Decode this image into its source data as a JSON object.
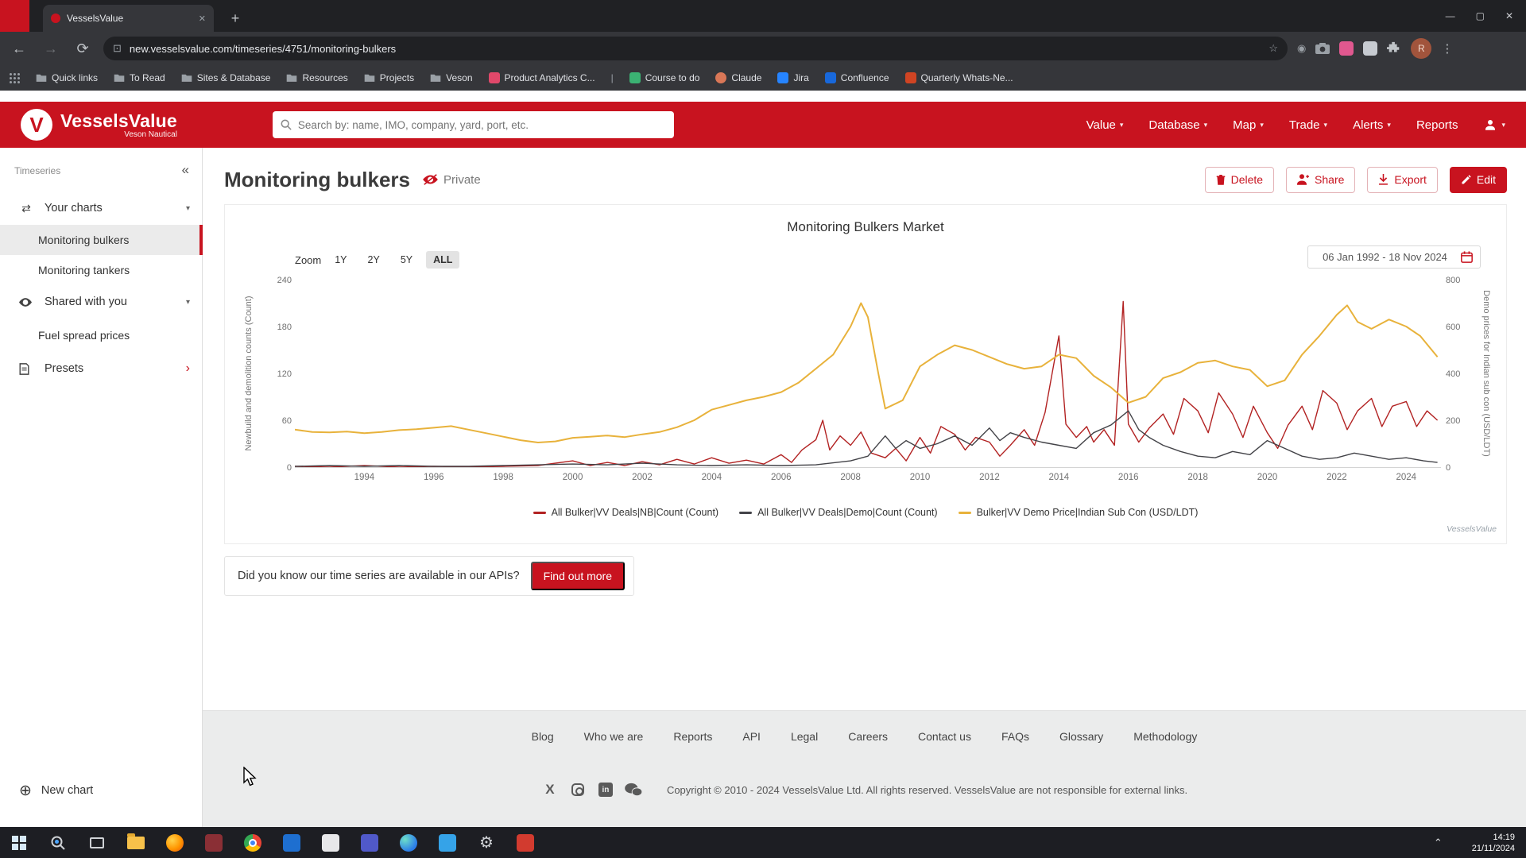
{
  "browser": {
    "tab": {
      "title": "VesselsValue"
    },
    "url": "new.vesselsvalue.com/timeseries/4751/monitoring-bulkers",
    "bookmarks": [
      {
        "label": "Quick links",
        "icon": "folder"
      },
      {
        "label": "To Read",
        "icon": "folder"
      },
      {
        "label": "Sites & Database",
        "icon": "folder"
      },
      {
        "label": "Resources",
        "icon": "folder"
      },
      {
        "label": "Projects",
        "icon": "folder"
      },
      {
        "label": "Veson",
        "icon": "folder"
      },
      {
        "label": "Product Analytics C...",
        "icon": "site"
      },
      {
        "label": "Course to do",
        "icon": "site"
      },
      {
        "label": "Claude",
        "icon": "site"
      },
      {
        "label": "Jira",
        "icon": "site"
      },
      {
        "label": "Confluence",
        "icon": "site"
      },
      {
        "label": "Quarterly Whats-Ne...",
        "icon": "site"
      }
    ]
  },
  "site_header": {
    "brand": "VesselsValue",
    "brand_sub": "Veson Nautical",
    "search_placeholder": "Search by: name, IMO, company, yard, port, etc.",
    "nav": [
      {
        "label": "Value",
        "dropdown": true
      },
      {
        "label": "Database",
        "dropdown": true
      },
      {
        "label": "Map",
        "dropdown": true
      },
      {
        "label": "Trade",
        "dropdown": true
      },
      {
        "label": "Alerts",
        "dropdown": true
      },
      {
        "label": "Reports",
        "dropdown": false
      }
    ]
  },
  "sidebar": {
    "section": "Timeseries",
    "your_charts": "Your charts",
    "your_charts_items": [
      "Monitoring bulkers",
      "Monitoring tankers"
    ],
    "selected_item": "Monitoring bulkers",
    "shared": "Shared with you",
    "shared_items": [
      "Fuel spread prices"
    ],
    "presets": "Presets",
    "new_chart": "New chart"
  },
  "page": {
    "title": "Monitoring bulkers",
    "privacy": "Private",
    "actions": {
      "delete": "Delete",
      "share": "Share",
      "export": "Export",
      "edit": "Edit"
    }
  },
  "chart": {
    "zoom_label": "Zoom",
    "zoom_buttons": [
      "1Y",
      "2Y",
      "5Y",
      "ALL"
    ],
    "zoom_active": "ALL",
    "date_range": "06 Jan 1992 - 18 Nov 2024",
    "watermark": "VesselsValue"
  },
  "api_banner": {
    "text": "Did you know our time series are available in our APIs?",
    "button": "Find out more"
  },
  "footer": {
    "links": [
      "Blog",
      "Who we are",
      "Reports",
      "API",
      "Legal",
      "Careers",
      "Contact us",
      "FAQs",
      "Glossary",
      "Methodology"
    ],
    "social": [
      "x",
      "instagram",
      "linkedin",
      "wechat"
    ],
    "copyright": "Copyright © 2010 - 2024 VesselsValue Ltd. All rights reserved. VesselsValue are not responsible for external links."
  },
  "taskbar": {
    "time": "14:19",
    "date": "21/11/2024"
  },
  "colors": {
    "brand_red": "#c8131f",
    "series_nb": "#b22222",
    "series_demo": "#434348",
    "series_price": "#e8b23b"
  },
  "chart_data": {
    "type": "line",
    "title": "Monitoring Bulkers Market",
    "x_range": [
      1992,
      2025
    ],
    "x_ticks": [
      1994,
      1996,
      1998,
      2000,
      2002,
      2004,
      2006,
      2008,
      2010,
      2012,
      2014,
      2016,
      2018,
      2020,
      2022,
      2024
    ],
    "left_axis": {
      "label": "Newbuild and demolition counts (Count)",
      "min": 0,
      "max": 240,
      "ticks": [
        0,
        60,
        120,
        180,
        240
      ]
    },
    "right_axis": {
      "label": "Demo prices for Indian sub con (USD/LDT)",
      "min": 0,
      "max": 800,
      "ticks": [
        0,
        200,
        400,
        600,
        800
      ]
    },
    "legend_position": "bottom",
    "grid": false,
    "series": [
      {
        "name": "All Bulker|VV Deals|NB|Count (Count)",
        "axis": "left",
        "color": "#b22222",
        "points": [
          [
            1992,
            1
          ],
          [
            1993,
            0
          ],
          [
            1994,
            2
          ],
          [
            1995,
            0
          ],
          [
            1996,
            1
          ],
          [
            1997,
            0
          ],
          [
            1998,
            1
          ],
          [
            1999,
            2
          ],
          [
            2000,
            8
          ],
          [
            2000.5,
            2
          ],
          [
            2001,
            6
          ],
          [
            2001.5,
            2
          ],
          [
            2002,
            7
          ],
          [
            2002.5,
            3
          ],
          [
            2003,
            10
          ],
          [
            2003.5,
            4
          ],
          [
            2004,
            12
          ],
          [
            2004.5,
            5
          ],
          [
            2005,
            9
          ],
          [
            2005.5,
            4
          ],
          [
            2006,
            16
          ],
          [
            2006.3,
            6
          ],
          [
            2006.6,
            22
          ],
          [
            2007,
            35
          ],
          [
            2007.2,
            60
          ],
          [
            2007.4,
            22
          ],
          [
            2007.7,
            40
          ],
          [
            2008,
            28
          ],
          [
            2008.3,
            45
          ],
          [
            2008.6,
            18
          ],
          [
            2009,
            12
          ],
          [
            2009.3,
            24
          ],
          [
            2009.6,
            8
          ],
          [
            2010,
            38
          ],
          [
            2010.3,
            18
          ],
          [
            2010.6,
            52
          ],
          [
            2011,
            42
          ],
          [
            2011.3,
            22
          ],
          [
            2011.6,
            38
          ],
          [
            2012,
            32
          ],
          [
            2012.3,
            14
          ],
          [
            2012.6,
            28
          ],
          [
            2013,
            48
          ],
          [
            2013.3,
            28
          ],
          [
            2013.6,
            70
          ],
          [
            2014,
            168
          ],
          [
            2014.2,
            55
          ],
          [
            2014.5,
            38
          ],
          [
            2014.8,
            52
          ],
          [
            2015,
            32
          ],
          [
            2015.3,
            48
          ],
          [
            2015.6,
            28
          ],
          [
            2015.85,
            212
          ],
          [
            2016,
            55
          ],
          [
            2016.3,
            32
          ],
          [
            2016.6,
            50
          ],
          [
            2017,
            68
          ],
          [
            2017.3,
            42
          ],
          [
            2017.6,
            88
          ],
          [
            2018,
            72
          ],
          [
            2018.3,
            44
          ],
          [
            2018.6,
            95
          ],
          [
            2019,
            68
          ],
          [
            2019.3,
            38
          ],
          [
            2019.6,
            78
          ],
          [
            2020,
            44
          ],
          [
            2020.3,
            24
          ],
          [
            2020.6,
            54
          ],
          [
            2021,
            78
          ],
          [
            2021.3,
            48
          ],
          [
            2021.6,
            98
          ],
          [
            2022,
            82
          ],
          [
            2022.3,
            48
          ],
          [
            2022.6,
            72
          ],
          [
            2023,
            88
          ],
          [
            2023.3,
            52
          ],
          [
            2023.6,
            78
          ],
          [
            2024,
            84
          ],
          [
            2024.3,
            52
          ],
          [
            2024.6,
            72
          ],
          [
            2024.9,
            60
          ]
        ]
      },
      {
        "name": "All Bulker|VV Deals|Demo|Count (Count)",
        "axis": "left",
        "color": "#434348",
        "points": [
          [
            1992,
            1
          ],
          [
            1993,
            2
          ],
          [
            1994,
            1
          ],
          [
            1995,
            2
          ],
          [
            1996,
            1
          ],
          [
            1997,
            1
          ],
          [
            1998,
            2
          ],
          [
            1999,
            3
          ],
          [
            2000,
            4
          ],
          [
            2001,
            3
          ],
          [
            2002,
            5
          ],
          [
            2003,
            3
          ],
          [
            2004,
            2
          ],
          [
            2005,
            3
          ],
          [
            2006,
            2
          ],
          [
            2007,
            3
          ],
          [
            2008,
            8
          ],
          [
            2008.5,
            14
          ],
          [
            2009,
            40
          ],
          [
            2009.3,
            24
          ],
          [
            2009.6,
            34
          ],
          [
            2010,
            24
          ],
          [
            2010.5,
            30
          ],
          [
            2011,
            40
          ],
          [
            2011.5,
            28
          ],
          [
            2012,
            50
          ],
          [
            2012.3,
            34
          ],
          [
            2012.6,
            44
          ],
          [
            2013,
            38
          ],
          [
            2013.5,
            32
          ],
          [
            2014,
            28
          ],
          [
            2014.5,
            24
          ],
          [
            2015,
            44
          ],
          [
            2015.5,
            54
          ],
          [
            2016,
            72
          ],
          [
            2016.3,
            48
          ],
          [
            2016.6,
            38
          ],
          [
            2017,
            28
          ],
          [
            2017.5,
            20
          ],
          [
            2018,
            14
          ],
          [
            2018.5,
            12
          ],
          [
            2019,
            20
          ],
          [
            2019.5,
            16
          ],
          [
            2020,
            34
          ],
          [
            2020.5,
            24
          ],
          [
            2021,
            14
          ],
          [
            2021.5,
            10
          ],
          [
            2022,
            12
          ],
          [
            2022.5,
            18
          ],
          [
            2023,
            14
          ],
          [
            2023.5,
            10
          ],
          [
            2024,
            12
          ],
          [
            2024.5,
            8
          ],
          [
            2024.9,
            6
          ]
        ]
      },
      {
        "name": "Bulker|VV Demo Price|Indian Sub Con (USD/LDT)",
        "axis": "right",
        "color": "#e8b23b",
        "points": [
          [
            1992,
            160
          ],
          [
            1992.5,
            150
          ],
          [
            1993,
            148
          ],
          [
            1993.5,
            152
          ],
          [
            1994,
            145
          ],
          [
            1994.5,
            150
          ],
          [
            1995,
            158
          ],
          [
            1995.5,
            162
          ],
          [
            1996,
            168
          ],
          [
            1996.5,
            175
          ],
          [
            1997,
            160
          ],
          [
            1997.5,
            145
          ],
          [
            1998,
            130
          ],
          [
            1998.5,
            115
          ],
          [
            1999,
            105
          ],
          [
            1999.5,
            110
          ],
          [
            2000,
            125
          ],
          [
            2000.5,
            130
          ],
          [
            2001,
            135
          ],
          [
            2001.5,
            128
          ],
          [
            2002,
            140
          ],
          [
            2002.5,
            150
          ],
          [
            2003,
            170
          ],
          [
            2003.5,
            200
          ],
          [
            2004,
            245
          ],
          [
            2004.5,
            265
          ],
          [
            2005,
            285
          ],
          [
            2005.5,
            300
          ],
          [
            2006,
            320
          ],
          [
            2006.5,
            360
          ],
          [
            2007,
            420
          ],
          [
            2007.5,
            480
          ],
          [
            2008,
            600
          ],
          [
            2008.3,
            700
          ],
          [
            2008.5,
            640
          ],
          [
            2008.8,
            400
          ],
          [
            2009,
            250
          ],
          [
            2009.5,
            285
          ],
          [
            2010,
            430
          ],
          [
            2010.5,
            480
          ],
          [
            2011,
            520
          ],
          [
            2011.5,
            500
          ],
          [
            2012,
            470
          ],
          [
            2012.5,
            440
          ],
          [
            2013,
            420
          ],
          [
            2013.5,
            430
          ],
          [
            2014,
            480
          ],
          [
            2014.5,
            465
          ],
          [
            2015,
            390
          ],
          [
            2015.5,
            340
          ],
          [
            2016,
            275
          ],
          [
            2016.5,
            300
          ],
          [
            2017,
            380
          ],
          [
            2017.5,
            405
          ],
          [
            2018,
            445
          ],
          [
            2018.5,
            455
          ],
          [
            2019,
            430
          ],
          [
            2019.5,
            415
          ],
          [
            2020,
            345
          ],
          [
            2020.5,
            370
          ],
          [
            2021,
            480
          ],
          [
            2021.5,
            560
          ],
          [
            2022,
            650
          ],
          [
            2022.3,
            690
          ],
          [
            2022.6,
            620
          ],
          [
            2023,
            590
          ],
          [
            2023.5,
            630
          ],
          [
            2024,
            600
          ],
          [
            2024.4,
            560
          ],
          [
            2024.9,
            470
          ]
        ]
      }
    ]
  }
}
